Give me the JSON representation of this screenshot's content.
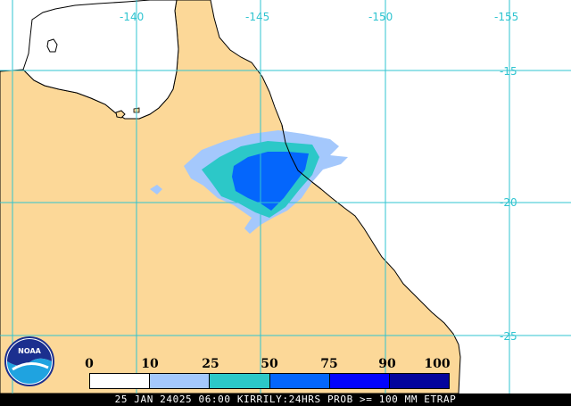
{
  "map": {
    "land_color": "#fcd898",
    "ocean_color": "#ffffff",
    "grid_color": "#2fc4d0",
    "coast_color": "#000000"
  },
  "longitude_labels": [
    "-140",
    "-145",
    "-150",
    "-155"
  ],
  "latitude_labels": [
    "-15",
    "-20",
    "-25"
  ],
  "legend": {
    "ticks": [
      "0",
      "10",
      "25",
      "50",
      "75",
      "90",
      "100"
    ],
    "colors": [
      "#ffffff",
      "#a4c8fc",
      "#2cc8c8",
      "#0466fc",
      "#0404fc",
      "#04049c"
    ]
  },
  "logo": {
    "text": "NOAA"
  },
  "caption": "25 JAN 24025 06:00 KIRRILY:24HRS PROB >= 100 MM ETRAP"
}
